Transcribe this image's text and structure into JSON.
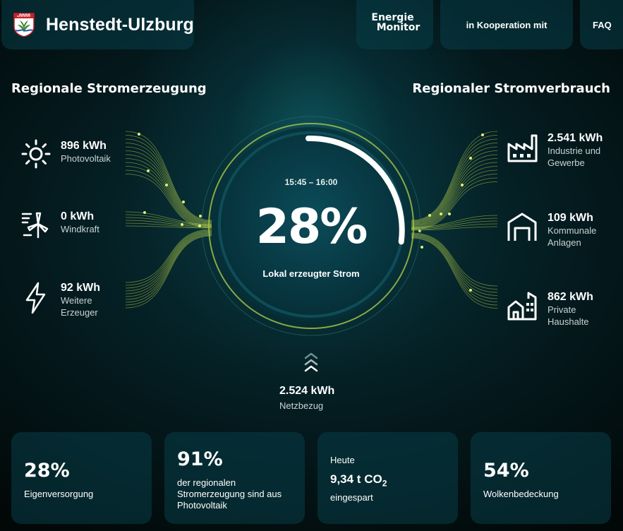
{
  "header": {
    "title": "Henstedt-Ulzburg",
    "crest_icon": "municipal-crest-icon",
    "energie_monitor": {
      "line1": "Energie",
      "line2": "Monitor"
    },
    "kooperation": "in Kooperation mit",
    "faq": "FAQ"
  },
  "generation": {
    "title": "Regionale Stromerzeugung",
    "items": [
      {
        "value": "896 kWh",
        "label_lines": [
          "Photovoltaik"
        ],
        "icon": "sun-icon"
      },
      {
        "value": "0 kWh",
        "label_lines": [
          "Windkraft"
        ],
        "icon": "wind-turbine-icon"
      },
      {
        "value": "92 kWh",
        "label_lines": [
          "Weitere",
          "Erzeuger"
        ],
        "icon": "lightning-icon"
      }
    ]
  },
  "consumption": {
    "title": "Regionaler Stromverbrauch",
    "items": [
      {
        "value": "2.541 kWh",
        "label_lines": [
          "Industrie und",
          "Gewerbe"
        ],
        "icon": "factory-icon"
      },
      {
        "value": "109 kWh",
        "label_lines": [
          "Kommunale",
          "Anlagen"
        ],
        "icon": "garage-icon"
      },
      {
        "value": "862 kWh",
        "label_lines": [
          "Private",
          "Haushalte"
        ],
        "icon": "house-icon"
      }
    ]
  },
  "center": {
    "time_range": "15:45 – 16:00",
    "percent": "28%",
    "percent_fraction": 0.28,
    "label": "Lokal erzeugter Strom"
  },
  "grid": {
    "value": "2.524 kWh",
    "label": "Netzbezug",
    "icon": "chevrons-up-icon"
  },
  "cards": [
    {
      "value": "28%",
      "label": "Eigenversorgung"
    },
    {
      "value": "91%",
      "label_lines": [
        "der regionalen",
        "Stromerzeugung sind aus",
        "Photovoltaik"
      ]
    },
    {
      "top": "Heute",
      "co2_value": "9,34 t CO",
      "co2_sub": "2",
      "label": "eingespart"
    },
    {
      "value": "54%",
      "label": "Wolkenbedeckung"
    }
  ],
  "colors": {
    "accent_flow": "#c3d94a",
    "ring": "#a9c849",
    "panel": "#083e48",
    "text_muted": "#c9d3d3"
  }
}
